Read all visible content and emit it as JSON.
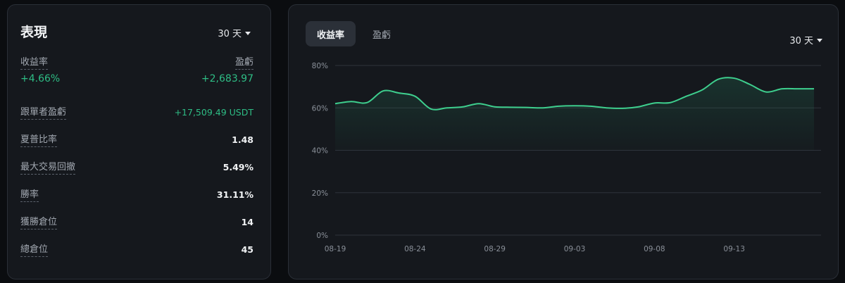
{
  "performance": {
    "title": "表現",
    "period": "30 天",
    "roi_label": "收益率",
    "roi_value": "+4.66%",
    "pnl_label": "盈虧",
    "pnl_value": "+2,683.97",
    "stats": [
      {
        "label": "跟單者盈虧",
        "value": "+17,509.49 USDT",
        "positive": true
      },
      {
        "label": "夏普比率",
        "value": "1.48",
        "positive": false
      },
      {
        "label": "最大交易回撤",
        "value": "5.49%",
        "positive": false
      },
      {
        "label": "勝率",
        "value": "31.11%",
        "positive": false
      },
      {
        "label": "獲勝倉位",
        "value": "14",
        "positive": false
      },
      {
        "label": "總倉位",
        "value": "45",
        "positive": false
      }
    ]
  },
  "chart_panel": {
    "tabs": [
      {
        "label": "收益率",
        "active": true
      },
      {
        "label": "盈虧",
        "active": false
      }
    ],
    "period": "30 天"
  },
  "colors": {
    "positive": "#2ebd85",
    "line": "#3ecf8e"
  },
  "chart_data": {
    "type": "area",
    "y_tick_labels": [
      "0%",
      "20%",
      "40%",
      "60%",
      "80%"
    ],
    "ylim": [
      0,
      80
    ],
    "x_tick_labels": [
      "08-19",
      "08-24",
      "08-29",
      "09-03",
      "09-08",
      "09-13"
    ],
    "grid": true,
    "series": [
      {
        "x": [
          "08-19",
          "08-20",
          "08-21",
          "08-22",
          "08-23",
          "08-24",
          "08-25",
          "08-26",
          "08-27",
          "08-28",
          "08-29",
          "08-30",
          "08-31",
          "09-01",
          "09-02",
          "09-03",
          "09-04",
          "09-05",
          "09-06",
          "09-07",
          "09-08",
          "09-09",
          "09-10",
          "09-11",
          "09-12",
          "09-13",
          "09-14",
          "09-15",
          "09-16",
          "09-17",
          "09-18"
        ],
        "values": [
          62,
          63,
          62.5,
          68,
          67,
          65.5,
          59.5,
          60,
          60.5,
          62,
          60.5,
          60.3,
          60.2,
          60,
          60.8,
          61,
          60.8,
          60,
          59.8,
          60.5,
          62.3,
          62.5,
          65.5,
          68.5,
          73.5,
          74,
          71,
          67.5,
          69,
          69,
          69
        ]
      }
    ]
  }
}
